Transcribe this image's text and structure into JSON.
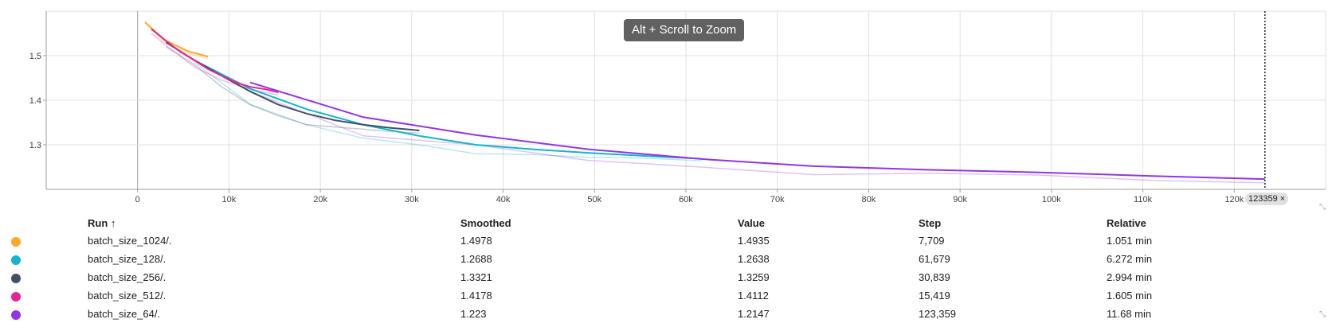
{
  "chart_data": {
    "type": "line",
    "xlim": [
      -10000,
      130000
    ],
    "ylim": [
      1.2,
      1.6
    ],
    "x_ticks": [
      0,
      10000,
      20000,
      30000,
      40000,
      50000,
      60000,
      70000,
      80000,
      90000,
      100000,
      110000,
      120000
    ],
    "x_tick_labels": [
      "0",
      "10k",
      "20k",
      "30k",
      "40k",
      "50k",
      "60k",
      "70k",
      "80k",
      "90k",
      "100k",
      "110k",
      "120k"
    ],
    "y_ticks": [
      1.3,
      1.4,
      1.5
    ],
    "y_tick_labels": [
      "1.3",
      "1.4",
      "1.5"
    ],
    "grid": true,
    "series": [
      {
        "name": "batch_size_1024/.",
        "color": "#ffa726",
        "x": [
          800,
          3000,
          5500,
          7709
        ],
        "y": [
          1.575,
          1.535,
          1.51,
          1.4978
        ],
        "raw_y": [
          1.575,
          1.53,
          1.505,
          1.4935
        ]
      },
      {
        "name": "batch_size_128/.",
        "color": "#12b5cb",
        "x": [
          6200,
          12400,
          18500,
          24700,
          30800,
          37000,
          43200,
          49300,
          55500,
          61679
        ],
        "y": [
          1.49,
          1.425,
          1.38,
          1.345,
          1.32,
          1.3,
          1.29,
          1.282,
          1.275,
          1.2688
        ],
        "raw_y": [
          1.485,
          1.39,
          1.345,
          1.315,
          1.3,
          1.28,
          1.278,
          1.272,
          1.27,
          1.2638
        ]
      },
      {
        "name": "batch_size_256/.",
        "color": "#425066",
        "x": [
          3100,
          6200,
          9200,
          12300,
          15400,
          18500,
          21600,
          24700,
          27700,
          30839
        ],
        "y": [
          1.53,
          1.49,
          1.455,
          1.42,
          1.39,
          1.37,
          1.355,
          1.345,
          1.338,
          1.3321
        ],
        "raw_y": [
          1.52,
          1.48,
          1.43,
          1.39,
          1.365,
          1.345,
          1.34,
          1.335,
          1.33,
          1.3259
        ]
      },
      {
        "name": "batch_size_512/.",
        "color": "#e52592",
        "x": [
          1500,
          3000,
          4600,
          6200,
          7700,
          9200,
          10800,
          12300,
          13900,
          15419
        ],
        "y": [
          1.56,
          1.535,
          1.51,
          1.49,
          1.47,
          1.455,
          1.44,
          1.43,
          1.425,
          1.4178
        ],
        "raw_y": [
          1.55,
          1.525,
          1.5,
          1.475,
          1.46,
          1.445,
          1.435,
          1.425,
          1.418,
          1.4112
        ]
      },
      {
        "name": "batch_size_64/.",
        "color": "#9334e6",
        "x": [
          12300,
          24700,
          37000,
          49300,
          61700,
          74000,
          86400,
          98700,
          111000,
          123359
        ],
        "y": [
          1.44,
          1.362,
          1.322,
          1.29,
          1.268,
          1.252,
          1.244,
          1.238,
          1.23,
          1.223
        ],
        "raw_y": [
          1.42,
          1.32,
          1.3,
          1.265,
          1.25,
          1.233,
          1.236,
          1.232,
          1.22,
          1.2147
        ]
      }
    ]
  },
  "overlay": {
    "zoom_hint": "Alt + Scroll to Zoom",
    "hover_step": 123359,
    "hover_step_label": "123359",
    "chip_close": "×",
    "resize_glyph": "⤡"
  },
  "table": {
    "headers": {
      "run": "Run ↑",
      "smoothed": "Smoothed",
      "value": "Value",
      "step": "Step",
      "relative": "Relative"
    },
    "rows": [
      {
        "color": "#ffa726",
        "run": "batch_size_1024/.",
        "smoothed": "1.4978",
        "value": "1.4935",
        "step": "7,709",
        "relative": "1.051 min"
      },
      {
        "color": "#12b5cb",
        "run": "batch_size_128/.",
        "smoothed": "1.2688",
        "value": "1.2638",
        "step": "61,679",
        "relative": "6.272 min"
      },
      {
        "color": "#425066",
        "run": "batch_size_256/.",
        "smoothed": "1.3321",
        "value": "1.3259",
        "step": "30,839",
        "relative": "2.994 min"
      },
      {
        "color": "#e52592",
        "run": "batch_size_512/.",
        "smoothed": "1.4178",
        "value": "1.4112",
        "step": "15,419",
        "relative": "1.605 min"
      },
      {
        "color": "#9334e6",
        "run": "batch_size_64/.",
        "smoothed": "1.223",
        "value": "1.2147",
        "step": "123,359",
        "relative": "11.68 min"
      }
    ]
  }
}
